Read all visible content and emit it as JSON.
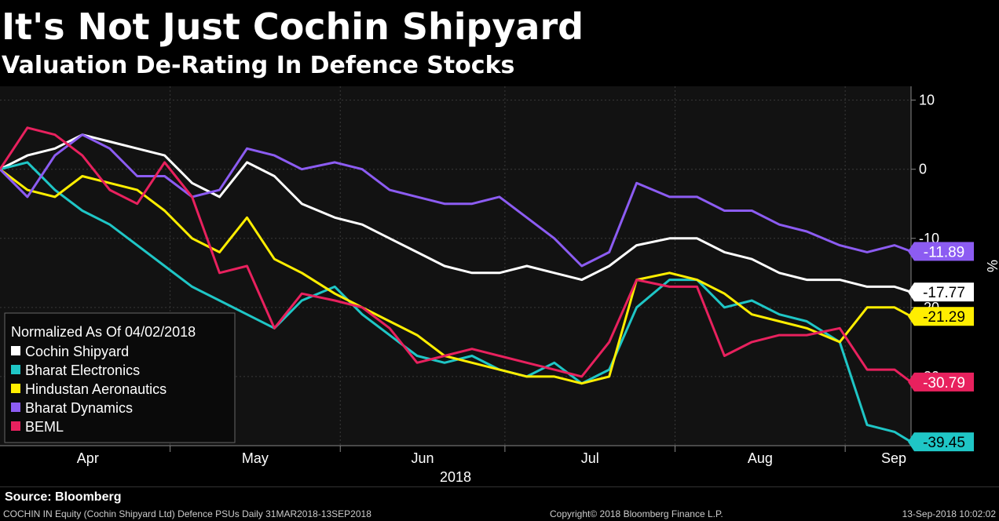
{
  "title": "It's Not Just Cochin Shipyard",
  "subtitle": "Valuation De-Rating In Defence Stocks",
  "source": "Source: Bloomberg",
  "footer": {
    "left": "COCHIN IN Equity (Cochin Shipyard Ltd) Defence PSUs  Daily 31MAR2018-13SEP2018",
    "center": "Copyright© 2018 Bloomberg Finance L.P.",
    "right": "13-Sep-2018 10:02:02"
  },
  "chart_data": {
    "type": "line",
    "ylabel": "%",
    "xlabel": "2018",
    "ylim": [
      -40,
      12
    ],
    "yticks": [
      10,
      0,
      -10,
      -20,
      -30
    ],
    "ytick_labels": [
      "10",
      "0",
      "-10",
      "-20",
      "-30"
    ],
    "month_labels": [
      "Apr",
      "May",
      "Jun",
      "Jul",
      "Aug",
      "Sep"
    ],
    "month_starts": [
      "2018-04-01",
      "2018-05-01",
      "2018-06-01",
      "2018-07-01",
      "2018-08-01",
      "2018-09-01"
    ],
    "x_start": "2018-03-31",
    "x_end": "2018-09-13",
    "legend": {
      "title": "Normalized As Of 04/02/2018",
      "position": "bottom-left"
    },
    "grid": true,
    "series": [
      {
        "name": "Cochin Shipyard",
        "color": "#ffffff",
        "last_value": "-17.77",
        "x": [
          "2018-03-31",
          "2018-04-05",
          "2018-04-10",
          "2018-04-15",
          "2018-04-20",
          "2018-04-25",
          "2018-04-30",
          "2018-05-05",
          "2018-05-10",
          "2018-05-15",
          "2018-05-20",
          "2018-05-25",
          "2018-05-31",
          "2018-06-05",
          "2018-06-10",
          "2018-06-15",
          "2018-06-20",
          "2018-06-25",
          "2018-06-30",
          "2018-07-05",
          "2018-07-10",
          "2018-07-15",
          "2018-07-20",
          "2018-07-25",
          "2018-07-31",
          "2018-08-05",
          "2018-08-10",
          "2018-08-15",
          "2018-08-20",
          "2018-08-25",
          "2018-08-31",
          "2018-09-05",
          "2018-09-10",
          "2018-09-13"
        ],
        "y": [
          0,
          2,
          3,
          5,
          4,
          3,
          2,
          -2,
          -4,
          1,
          -1,
          -5,
          -7,
          -8,
          -10,
          -12,
          -14,
          -15,
          -15,
          -14,
          -15,
          -16,
          -14,
          -11,
          -10,
          -10,
          -12,
          -13,
          -15,
          -16,
          -16,
          -17,
          -17,
          -17.77
        ]
      },
      {
        "name": "Bharat Electronics",
        "color": "#1fc6c6",
        "last_value": "-39.45",
        "x": [
          "2018-03-31",
          "2018-04-05",
          "2018-04-10",
          "2018-04-15",
          "2018-04-20",
          "2018-04-25",
          "2018-04-30",
          "2018-05-05",
          "2018-05-10",
          "2018-05-15",
          "2018-05-20",
          "2018-05-25",
          "2018-05-31",
          "2018-06-05",
          "2018-06-10",
          "2018-06-15",
          "2018-06-20",
          "2018-06-25",
          "2018-06-30",
          "2018-07-05",
          "2018-07-10",
          "2018-07-15",
          "2018-07-20",
          "2018-07-25",
          "2018-07-31",
          "2018-08-05",
          "2018-08-10",
          "2018-08-15",
          "2018-08-20",
          "2018-08-25",
          "2018-08-31",
          "2018-09-05",
          "2018-09-10",
          "2018-09-13"
        ],
        "y": [
          0,
          1,
          -3,
          -6,
          -8,
          -11,
          -14,
          -17,
          -19,
          -21,
          -23,
          -19,
          -17,
          -21,
          -24,
          -27,
          -28,
          -27,
          -29,
          -30,
          -28,
          -31,
          -29,
          -20,
          -16,
          -16,
          -20,
          -19,
          -21,
          -22,
          -25,
          -37,
          -38,
          -39.45
        ]
      },
      {
        "name": "Hindustan Aeronautics",
        "color": "#ffee00",
        "last_value": "-21.29",
        "x": [
          "2018-03-31",
          "2018-04-05",
          "2018-04-10",
          "2018-04-15",
          "2018-04-20",
          "2018-04-25",
          "2018-04-30",
          "2018-05-05",
          "2018-05-10",
          "2018-05-15",
          "2018-05-20",
          "2018-05-25",
          "2018-05-31",
          "2018-06-05",
          "2018-06-10",
          "2018-06-15",
          "2018-06-20",
          "2018-06-25",
          "2018-06-30",
          "2018-07-05",
          "2018-07-10",
          "2018-07-15",
          "2018-07-20",
          "2018-07-25",
          "2018-07-31",
          "2018-08-05",
          "2018-08-10",
          "2018-08-15",
          "2018-08-20",
          "2018-08-25",
          "2018-08-31",
          "2018-09-05",
          "2018-09-10",
          "2018-09-13"
        ],
        "y": [
          0,
          -3,
          -4,
          -1,
          -2,
          -3,
          -6,
          -10,
          -12,
          -7,
          -13,
          -15,
          -18,
          -20,
          -22,
          -24,
          -27,
          -28,
          -29,
          -30,
          -30,
          -31,
          -30,
          -16,
          -15,
          -16,
          -18,
          -21,
          -22,
          -23,
          -25,
          -20,
          -20,
          -21.29
        ]
      },
      {
        "name": "Bharat Dynamics",
        "color": "#8c5cf2",
        "last_value": "-11.89",
        "x": [
          "2018-03-31",
          "2018-04-05",
          "2018-04-10",
          "2018-04-15",
          "2018-04-20",
          "2018-04-25",
          "2018-04-30",
          "2018-05-05",
          "2018-05-10",
          "2018-05-15",
          "2018-05-20",
          "2018-05-25",
          "2018-05-31",
          "2018-06-05",
          "2018-06-10",
          "2018-06-15",
          "2018-06-20",
          "2018-06-25",
          "2018-06-30",
          "2018-07-05",
          "2018-07-10",
          "2018-07-15",
          "2018-07-20",
          "2018-07-25",
          "2018-07-31",
          "2018-08-05",
          "2018-08-10",
          "2018-08-15",
          "2018-08-20",
          "2018-08-25",
          "2018-08-31",
          "2018-09-05",
          "2018-09-10",
          "2018-09-13"
        ],
        "y": [
          0,
          -4,
          2,
          5,
          3,
          -1,
          -1,
          -4,
          -3,
          3,
          2,
          0,
          1,
          0,
          -3,
          -4,
          -5,
          -5,
          -4,
          -7,
          -10,
          -14,
          -12,
          -2,
          -4,
          -4,
          -6,
          -6,
          -8,
          -9,
          -11,
          -12,
          -11,
          -11.89
        ]
      },
      {
        "name": "BEML",
        "color": "#e8215e",
        "last_value": "-30.79",
        "x": [
          "2018-03-31",
          "2018-04-05",
          "2018-04-10",
          "2018-04-15",
          "2018-04-20",
          "2018-04-25",
          "2018-04-30",
          "2018-05-05",
          "2018-05-10",
          "2018-05-15",
          "2018-05-20",
          "2018-05-25",
          "2018-05-31",
          "2018-06-05",
          "2018-06-10",
          "2018-06-15",
          "2018-06-20",
          "2018-06-25",
          "2018-06-30",
          "2018-07-05",
          "2018-07-10",
          "2018-07-15",
          "2018-07-20",
          "2018-07-25",
          "2018-07-31",
          "2018-08-05",
          "2018-08-10",
          "2018-08-15",
          "2018-08-20",
          "2018-08-25",
          "2018-08-31",
          "2018-09-05",
          "2018-09-10",
          "2018-09-13"
        ],
        "y": [
          0,
          6,
          5,
          2,
          -3,
          -5,
          1,
          -4,
          -15,
          -14,
          -23,
          -18,
          -19,
          -20,
          -23,
          -28,
          -27,
          -26,
          -27,
          -28,
          -29,
          -30,
          -25,
          -16,
          -17,
          -17,
          -27,
          -25,
          -24,
          -24,
          -23,
          -29,
          -29,
          -30.79
        ]
      }
    ]
  }
}
